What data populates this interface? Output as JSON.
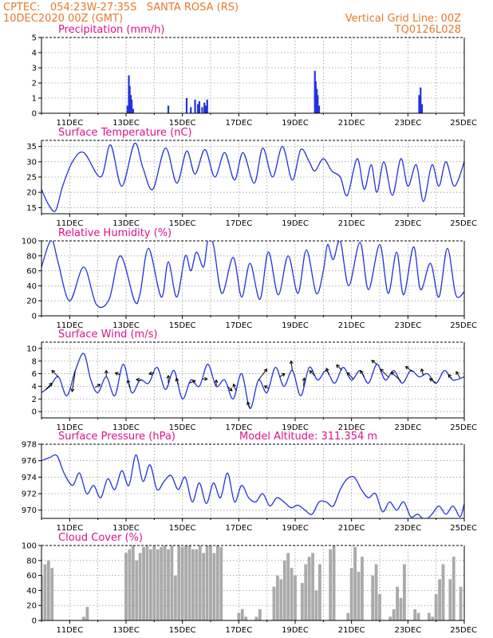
{
  "header": {
    "line1_left": "CPTEC:   054:23W-27:35S   SANTA ROSA (RS)",
    "line2_left": "10DEC2020 00Z (GMT)",
    "line1_right": "Vertical Grid Line: 00Z",
    "line2_right": "TQ0126L028"
  },
  "x_tick_labels": [
    "11DEC",
    "13DEC",
    "15DEC",
    "17DEC",
    "19DEC",
    "21DEC",
    "23DEC",
    "25DEC"
  ],
  "colors": {
    "header": "#e8782a",
    "title": "#e0108c",
    "series": "#2233dd",
    "cloud": "#aaaaaa"
  },
  "chart_data": [
    {
      "id": "precip",
      "type": "bar",
      "title": "Precipitation (mm/h)",
      "xlim": [
        0,
        15
      ],
      "ylim": [
        0,
        5
      ],
      "yticks": [
        0,
        1,
        2,
        3,
        4,
        5
      ],
      "color": "#2233dd",
      "x": [
        3.05,
        3.1,
        3.13,
        3.17,
        3.2,
        3.25,
        4.5,
        5.15,
        5.3,
        5.45,
        5.55,
        5.6,
        5.7,
        5.78,
        5.83,
        5.88,
        9.7,
        9.73,
        9.77,
        9.8,
        9.85,
        13.4,
        13.45,
        13.5
      ],
      "values": [
        0.5,
        2.5,
        1.8,
        1.2,
        0.9,
        0.3,
        0.5,
        1.0,
        0.4,
        0.9,
        0.6,
        0.8,
        0.4,
        0.7,
        0.5,
        0.9,
        2.8,
        2.1,
        1.6,
        1.2,
        0.5,
        1.2,
        1.7,
        0.6
      ]
    },
    {
      "id": "temp",
      "type": "line",
      "title": "Surface Temperature (nC)",
      "xlim": [
        0,
        15
      ],
      "ylim": [
        13,
        37
      ],
      "yticks": [
        15,
        20,
        25,
        30,
        35
      ],
      "x": [
        0,
        0.25,
        0.5,
        0.75,
        1.1,
        1.5,
        2.1,
        2.45,
        2.85,
        3.3,
        3.6,
        3.95,
        4.4,
        4.8,
        5.15,
        5.45,
        5.8,
        6.15,
        6.5,
        6.85,
        7.15,
        7.55,
        7.85,
        8.2,
        8.55,
        8.9,
        9.2,
        9.5,
        9.7,
        10.0,
        10.3,
        10.6,
        10.85,
        11.2,
        11.45,
        11.7,
        11.9,
        12.15,
        12.45,
        12.75,
        13.0,
        13.3,
        13.55,
        13.85,
        14.1,
        14.35,
        14.65,
        15.0
      ],
      "values": [
        21,
        16,
        14,
        22,
        30,
        33,
        25,
        35.5,
        22,
        36,
        28,
        21,
        34.5,
        23,
        33.5,
        26,
        34,
        25,
        33,
        24,
        33,
        23,
        34.5,
        25,
        35,
        24,
        34,
        30,
        27,
        31,
        27,
        25,
        19,
        31,
        21,
        29,
        20,
        30,
        19,
        31,
        22,
        29,
        17,
        29,
        22,
        30,
        22,
        30
      ]
    },
    {
      "id": "rh",
      "type": "line",
      "title": "Relative Humidity (%)",
      "xlim": [
        0,
        15
      ],
      "ylim": [
        0,
        100
      ],
      "yticks": [
        0,
        20,
        40,
        60,
        80,
        100
      ],
      "x": [
        0,
        0.25,
        0.4,
        0.6,
        1.0,
        1.5,
        1.95,
        2.4,
        2.8,
        3.3,
        3.5,
        3.8,
        4.25,
        4.5,
        4.8,
        5.1,
        5.3,
        5.5,
        5.75,
        5.9,
        6.1,
        6.4,
        6.8,
        7.1,
        7.4,
        7.75,
        8.05,
        8.4,
        8.75,
        9.1,
        9.4,
        9.75,
        10.0,
        10.15,
        10.35,
        10.6,
        10.9,
        11.3,
        11.6,
        12.0,
        12.3,
        12.6,
        12.85,
        13.2,
        13.45,
        13.8,
        14.1,
        14.4,
        14.7,
        15.0
      ],
      "values": [
        65,
        95,
        100,
        70,
        20,
        65,
        15,
        22,
        80,
        20,
        30,
        90,
        25,
        72,
        25,
        80,
        60,
        85,
        65,
        100,
        95,
        30,
        78,
        25,
        70,
        22,
        85,
        28,
        80,
        30,
        88,
        30,
        60,
        95,
        75,
        100,
        40,
        98,
        35,
        95,
        30,
        85,
        28,
        92,
        35,
        70,
        25,
        90,
        28,
        32
      ]
    },
    {
      "id": "wind",
      "type": "line",
      "title": "Surface Wind (m/s)",
      "xlim": [
        0,
        15
      ],
      "ylim": [
        -1,
        11
      ],
      "yticks": [
        0,
        2,
        4,
        6,
        8,
        10
      ],
      "x": [
        0,
        0.3,
        0.6,
        0.9,
        1.2,
        1.5,
        1.75,
        2.0,
        2.3,
        2.6,
        2.9,
        3.2,
        3.5,
        3.8,
        4.1,
        4.4,
        4.7,
        5.0,
        5.3,
        5.6,
        5.9,
        6.2,
        6.5,
        6.8,
        7.1,
        7.4,
        7.7,
        8.0,
        8.3,
        8.6,
        8.9,
        9.2,
        9.5,
        9.8,
        10.1,
        10.4,
        10.7,
        11.0,
        11.3,
        11.6,
        11.9,
        12.2,
        12.5,
        12.8,
        13.1,
        13.4,
        13.7,
        14.0,
        14.3,
        14.6,
        15.0
      ],
      "values": [
        3,
        4,
        5.5,
        2.5,
        6.5,
        9.2,
        5,
        3,
        5.5,
        2.5,
        7.5,
        3,
        5,
        4.5,
        7,
        3.5,
        6.5,
        2,
        5,
        4,
        7.5,
        4,
        5,
        2,
        6,
        0.5,
        5,
        3,
        7,
        4,
        6.5,
        2.5,
        7,
        5,
        6.5,
        4.5,
        7,
        5,
        6.5,
        4.5,
        7.5,
        5,
        6.5,
        4.5,
        6.5,
        5.5,
        6,
        4.5,
        6.5,
        5,
        5.5
      ],
      "arrows": [
        {
          "x": 0.15,
          "u": 1,
          "v": 1
        },
        {
          "x": 0.6,
          "u": -1,
          "v": 1
        },
        {
          "x": 1.2,
          "u": -0.5,
          "v": -3.3
        },
        {
          "x": 1.9,
          "u": 0.8,
          "v": 0.5
        },
        {
          "x": 2.3,
          "u": 0,
          "v": 1
        },
        {
          "x": 2.8,
          "u": -0.8,
          "v": 0.3
        },
        {
          "x": 3.15,
          "u": -0.4,
          "v": 1.2
        },
        {
          "x": 3.55,
          "u": -0.8,
          "v": 0.2
        },
        {
          "x": 4.0,
          "u": -0.8,
          "v": -0.2
        },
        {
          "x": 4.5,
          "u": 0,
          "v": 1.2
        },
        {
          "x": 4.85,
          "u": -0.3,
          "v": 1
        },
        {
          "x": 5.25,
          "u": 0.9,
          "v": 0.4
        },
        {
          "x": 5.7,
          "u": 0.8,
          "v": 0
        },
        {
          "x": 6.2,
          "u": 0,
          "v": 1
        },
        {
          "x": 6.6,
          "u": 0.7,
          "v": -0.7
        },
        {
          "x": 6.9,
          "u": -0.4,
          "v": 1
        },
        {
          "x": 7.4,
          "u": -0.4,
          "v": 1
        },
        {
          "x": 7.7,
          "u": 1.3,
          "v": 1.7
        },
        {
          "x": 8.05,
          "u": -0.6,
          "v": 0.4
        },
        {
          "x": 8.45,
          "u": 0.8,
          "v": 0.5
        },
        {
          "x": 8.9,
          "u": -0.2,
          "v": 1.5
        },
        {
          "x": 9.3,
          "u": 0.1,
          "v": 1.3
        },
        {
          "x": 9.7,
          "u": -0.8,
          "v": 0.8
        },
        {
          "x": 10.2,
          "u": -0.4,
          "v": 1
        },
        {
          "x": 10.65,
          "u": -0.8,
          "v": 0.8
        },
        {
          "x": 11.05,
          "u": -0.9,
          "v": 0.9
        },
        {
          "x": 11.45,
          "u": -0.6,
          "v": 1
        },
        {
          "x": 11.9,
          "u": -0.8,
          "v": 0.6
        },
        {
          "x": 12.3,
          "u": -1.2,
          "v": 1.2
        },
        {
          "x": 12.75,
          "u": -1.5,
          "v": 1.4
        },
        {
          "x": 13.15,
          "u": -1,
          "v": 0.8
        },
        {
          "x": 13.55,
          "u": -0.3,
          "v": 1
        },
        {
          "x": 14.0,
          "u": -1,
          "v": 0.7
        },
        {
          "x": 14.55,
          "u": -0.5,
          "v": 0.6
        },
        {
          "x": 14.85,
          "u": -0.6,
          "v": 1
        }
      ]
    },
    {
      "id": "press",
      "type": "line",
      "title": "Surface Pressure (hPa)",
      "annotation": "Model Altitude: 311.354 m",
      "xlim": [
        0,
        15
      ],
      "ylim": [
        969,
        978
      ],
      "yticks": [
        970,
        972,
        974,
        976,
        978
      ],
      "x": [
        0,
        0.3,
        0.55,
        0.8,
        1.1,
        1.35,
        1.6,
        1.85,
        2.1,
        2.35,
        2.6,
        2.85,
        3.1,
        3.35,
        3.6,
        3.85,
        4.1,
        4.35,
        4.6,
        4.85,
        5.1,
        5.35,
        5.6,
        5.85,
        6.1,
        6.35,
        6.6,
        6.85,
        7.1,
        7.35,
        7.6,
        7.85,
        8.1,
        8.35,
        8.6,
        8.85,
        9.1,
        9.35,
        9.6,
        9.85,
        10.1,
        10.35,
        10.6,
        10.85,
        11.1,
        11.35,
        11.6,
        11.85,
        12.1,
        12.35,
        12.6,
        12.85,
        13.1,
        13.35,
        13.6,
        13.85,
        14.1,
        14.35,
        14.6,
        14.85,
        15.0
      ],
      "values": [
        976,
        976.4,
        976.6,
        974.5,
        973,
        974.5,
        972,
        973,
        971.5,
        973.8,
        972.5,
        974.8,
        973,
        976.7,
        973.5,
        975.5,
        972.5,
        973.5,
        974.2,
        972.5,
        974,
        971,
        973.3,
        970.8,
        973.3,
        971.5,
        974.5,
        971,
        973,
        971.5,
        971,
        972,
        970.5,
        971.5,
        971,
        970.3,
        970.6,
        970,
        969.5,
        971,
        971,
        970.5,
        972.5,
        973.8,
        974,
        972.5,
        971.5,
        972,
        969.8,
        971,
        970,
        971,
        969.2,
        969.5,
        968.8,
        969.5,
        970.5,
        969.5,
        970.5,
        969.2,
        970.8
      ]
    },
    {
      "id": "cloud",
      "type": "bar",
      "title": "Cloud Cover (%)",
      "xlim": [
        0,
        15
      ],
      "ylim": [
        0,
        100
      ],
      "yticks": [
        0,
        20,
        40,
        60,
        80,
        100
      ],
      "color": "#aaaaaa",
      "x": [
        0.0,
        0.125,
        0.25,
        0.375,
        0.5,
        0.625,
        0.75,
        0.875,
        1.0,
        1.125,
        1.25,
        1.375,
        1.5,
        1.625,
        1.75,
        1.875,
        2.0,
        2.125,
        2.25,
        2.375,
        2.5,
        2.625,
        2.75,
        2.875,
        3.0,
        3.125,
        3.25,
        3.375,
        3.5,
        3.625,
        3.75,
        3.875,
        4.0,
        4.125,
        4.25,
        4.375,
        4.5,
        4.625,
        4.75,
        4.875,
        5.0,
        5.125,
        5.25,
        5.375,
        5.5,
        5.625,
        5.75,
        5.875,
        6.0,
        6.125,
        6.25,
        6.375,
        6.5,
        6.625,
        6.75,
        6.875,
        7.0,
        7.125,
        7.25,
        7.375,
        7.5,
        7.625,
        7.75,
        7.875,
        8.0,
        8.125,
        8.25,
        8.375,
        8.5,
        8.625,
        8.75,
        8.875,
        9.0,
        9.125,
        9.25,
        9.375,
        9.5,
        9.625,
        9.75,
        9.875,
        10.0,
        10.125,
        10.25,
        10.375,
        10.5,
        10.625,
        10.75,
        10.875,
        11.0,
        11.125,
        11.25,
        11.375,
        11.5,
        11.625,
        11.75,
        11.875,
        12.0,
        12.125,
        12.25,
        12.375,
        12.5,
        12.625,
        12.75,
        12.875,
        13.0,
        13.125,
        13.25,
        13.375,
        13.5,
        13.625,
        13.75,
        13.875,
        14.0,
        14.125,
        14.25,
        14.375,
        14.5,
        14.625,
        14.75,
        14.875
      ],
      "values": [
        60,
        75,
        80,
        70,
        0,
        0,
        0,
        0,
        0,
        0,
        0,
        0,
        5,
        18,
        0,
        0,
        0,
        0,
        0,
        0,
        0,
        0,
        0,
        0,
        90,
        95,
        100,
        80,
        90,
        98,
        100,
        95,
        100,
        95,
        98,
        100,
        95,
        100,
        60,
        100,
        98,
        100,
        100,
        95,
        95,
        100,
        90,
        100,
        100,
        90,
        100,
        98,
        0,
        0,
        0,
        0,
        10,
        15,
        5,
        0,
        0,
        5,
        15,
        0,
        0,
        0,
        45,
        60,
        55,
        80,
        90,
        70,
        60,
        0,
        50,
        75,
        85,
        90,
        40,
        75,
        0,
        0,
        95,
        100,
        0,
        0,
        0,
        10,
        70,
        98,
        65,
        85,
        0,
        0,
        60,
        75,
        35,
        0,
        0,
        5,
        15,
        45,
        30,
        75,
        0,
        0,
        15,
        10,
        0,
        0,
        10,
        5,
        35,
        55,
        75,
        0,
        55,
        85,
        0,
        45
      ]
    }
  ]
}
